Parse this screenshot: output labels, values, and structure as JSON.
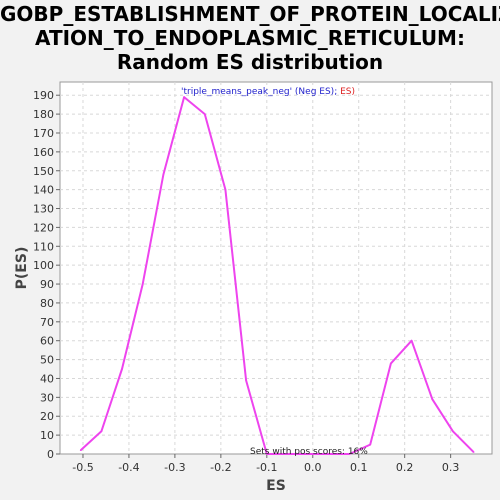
{
  "chart_data": {
    "type": "line",
    "title_lines": [
      "GOBP_ESTABLISHMENT_OF_PROTEIN_LOCALIZ",
      "ATION_TO_ENDOPLASMIC_RETICULUM:",
      "Random ES distribution"
    ],
    "xlabel": "ES",
    "ylabel": "P(ES)",
    "xlim": [
      -0.55,
      0.39
    ],
    "ylim": [
      0,
      197
    ],
    "x_ticks": [
      -0.5,
      -0.4,
      -0.3,
      -0.2,
      -0.1,
      0.0,
      0.1,
      0.2,
      0.3
    ],
    "x_tick_labels": [
      "-0.5",
      "-0.4",
      "-0.3",
      "-0.2",
      "-0.1",
      "0.0",
      "0.1",
      "0.2",
      "0.3"
    ],
    "y_ticks": [
      0,
      10,
      20,
      30,
      40,
      50,
      60,
      70,
      80,
      90,
      100,
      110,
      120,
      130,
      140,
      150,
      160,
      170,
      180,
      190
    ],
    "grid": true,
    "legend": {
      "prefix": "'triple_means_peak_neg' (Neg ES)",
      "separator": "; ",
      "suffix": "ES)",
      "prefix_color": "#2222cc",
      "suffix_color": "#dd2222",
      "placement": "top-center"
    },
    "annotation": "Sets with pos scores: 16%",
    "series": [
      {
        "color": "#ee44ee",
        "x": [
          -0.505,
          -0.46,
          -0.415,
          -0.37,
          -0.325,
          -0.28,
          -0.235,
          -0.19,
          -0.145,
          -0.1,
          -0.055,
          -0.01,
          0.035,
          0.08,
          0.125,
          0.17,
          0.215,
          0.26,
          0.305,
          0.35
        ],
        "y": [
          2,
          12,
          45,
          90,
          148,
          189,
          180,
          140,
          39,
          0,
          0,
          0,
          0,
          0,
          5,
          48,
          60,
          29,
          12,
          1
        ]
      }
    ]
  }
}
